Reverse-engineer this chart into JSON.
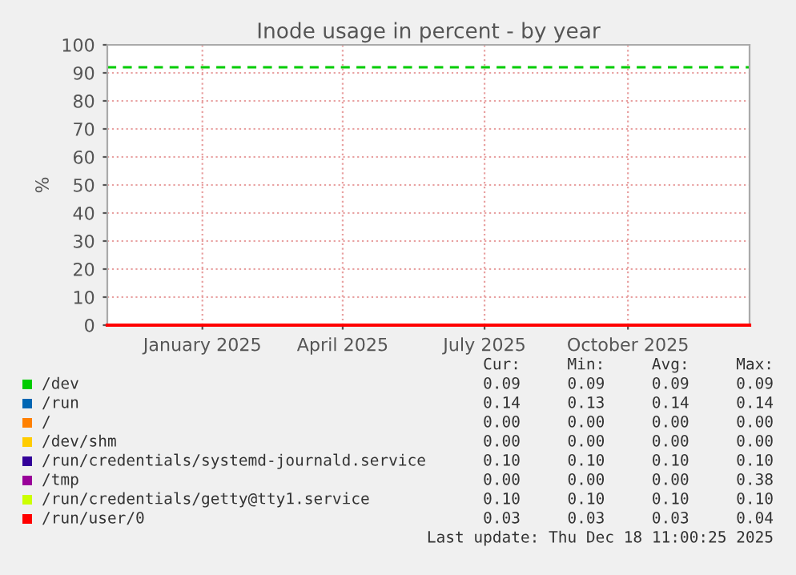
{
  "chart_data": {
    "type": "line",
    "title": "Inode usage in percent - by year",
    "ylabel": "%",
    "x": [
      "2024-11-01",
      "2025-12-18"
    ],
    "xlim": [
      "2024-11-01",
      "2025-12-18"
    ],
    "xticks": [
      {
        "value": "2025-01-01",
        "label": "January 2025"
      },
      {
        "value": "2025-04-01",
        "label": "April 2025"
      },
      {
        "value": "2025-07-01",
        "label": "July 2025"
      },
      {
        "value": "2025-10-01",
        "label": "October 2025"
      }
    ],
    "ylim": [
      0,
      100
    ],
    "yticks": [
      0,
      10,
      20,
      30,
      40,
      50,
      60,
      70,
      80,
      90,
      100
    ],
    "grid": true,
    "legend": "bottom",
    "ref_lines": [
      {
        "axis": "y",
        "value": 92,
        "label": null,
        "color": "#00cc00",
        "line_style": "dashed"
      }
    ],
    "series": [
      {
        "name": "/dev",
        "color": "#00cc00",
        "values": [
          null,
          null
        ]
      },
      {
        "name": "/run",
        "color": "#0066b3",
        "values": [
          null,
          null
        ]
      },
      {
        "name": "/",
        "color": "#ff8000",
        "values": [
          null,
          null
        ]
      },
      {
        "name": "/dev/shm",
        "color": "#ffcc00",
        "values": [
          null,
          null
        ]
      },
      {
        "name": "/run/credentials/systemd-journald.service",
        "color": "#330099",
        "values": [
          null,
          null
        ]
      },
      {
        "name": "/tmp",
        "color": "#990099",
        "values": [
          null,
          null
        ]
      },
      {
        "name": "/run/credentials/getty@tty1.service",
        "color": "#ccff00",
        "values": [
          null,
          null
        ]
      },
      {
        "name": "/run/user/0",
        "color": "#ff0000",
        "values": [
          0,
          0
        ]
      }
    ],
    "annotations": [
      "Cur:     Min:     Avg:     Max:",
      "0.09     0.09     0.09     0.09",
      "0.14     0.13     0.14     0.14",
      "0.00     0.00     0.00     0.00",
      "0.00     0.00     0.00     0.00",
      "0.10     0.10     0.10     0.10",
      "0.00     0.00     0.00     0.38",
      "0.10     0.10     0.10     0.10",
      "0.03     0.03     0.03     0.04",
      "Last update: Thu Dec 18 11:00:25 2025"
    ]
  }
}
